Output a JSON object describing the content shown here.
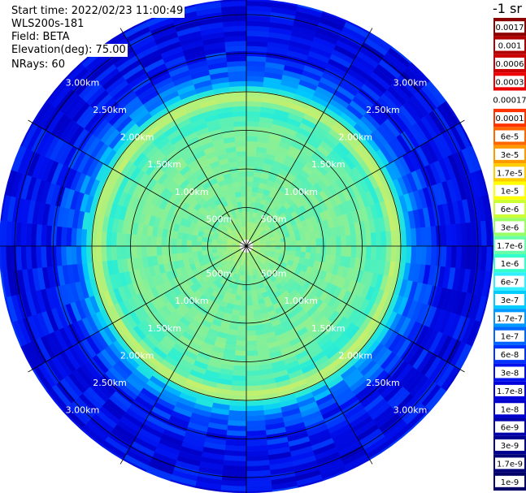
{
  "header": {
    "start_time": "Start time: 2022/02/23 11:00:49",
    "instrument": "WLS200s-181",
    "field": "Field: BETA",
    "elevation": "Elevation(deg): 75.00",
    "nrays": "NRays: 60"
  },
  "colorbar": {
    "unit": "-1 sr",
    "labels": [
      "0.0017",
      "0.001",
      "0.0006",
      "0.0003",
      "0.00017",
      "0.0001",
      "6e-5",
      "3e-5",
      "1.7e-5",
      "1e-5",
      "6e-6",
      "3e-6",
      "1.7e-6",
      "1e-6",
      "6e-7",
      "3e-7",
      "1.7e-7",
      "1e-7",
      "6e-8",
      "3e-8",
      "1.7e-8",
      "1e-8",
      "6e-9",
      "3e-9",
      "1.7e-9",
      "1e-9"
    ],
    "colors": [
      "#8b0000",
      "#b00000",
      "#cc0000",
      "#ee0000",
      "#ffffff",
      "#ff3300",
      "#ff6600",
      "#ff9900",
      "#ffcc00",
      "#ffff00",
      "#ccff33",
      "#99ff66",
      "#66ffaa",
      "#33ffcc",
      "#33eeff",
      "#00ccff",
      "#0099ff",
      "#0066ff",
      "#0033ff",
      "#0011ee",
      "#0000dd",
      "#0000cc",
      "#0000aa",
      "#000090",
      "#000077",
      "#000066"
    ]
  },
  "chart_data": {
    "type": "polar-ppi",
    "field": "BETA",
    "elevation_deg": 75.0,
    "nrays": 60,
    "spoke_angles_deg": [
      0,
      30,
      60,
      90,
      120,
      150,
      180,
      210,
      240,
      270,
      300,
      330
    ],
    "range_ring_labels": [
      "500m",
      "1.00km",
      "1.50km",
      "2.00km",
      "2.50km",
      "3.00km"
    ],
    "range_rings_km": [
      0.5,
      1.0,
      1.5,
      2.0,
      2.5,
      3.0
    ],
    "radial_profile": [
      {
        "range_km": 0.1,
        "beta": 3e-06
      },
      {
        "range_km": 0.5,
        "beta": 1.7e-06
      },
      {
        "range_km": 1.0,
        "beta": 1.7e-06
      },
      {
        "range_km": 1.5,
        "beta": 1.7e-06
      },
      {
        "range_km": 1.8,
        "beta": 1e-06
      },
      {
        "range_km": 1.95,
        "beta": 6e-06
      },
      {
        "range_km": 2.05,
        "beta": 6e-07
      },
      {
        "range_km": 2.2,
        "beta": 6e-08
      },
      {
        "range_km": 2.5,
        "beta": 1e-08
      },
      {
        "range_km": 3.0,
        "beta": 6e-09
      },
      {
        "range_km": 3.3,
        "beta": 1e-08
      }
    ]
  }
}
